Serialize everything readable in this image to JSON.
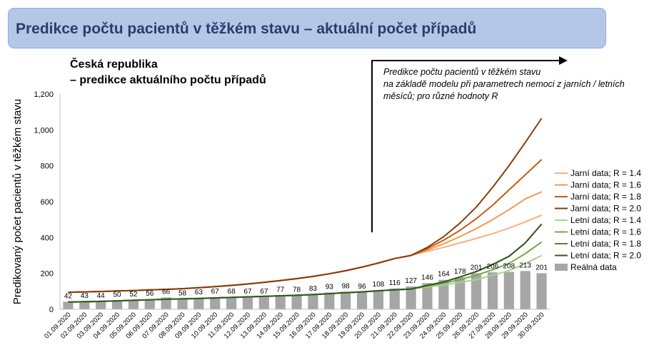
{
  "header": {
    "title": "Predikce počtu pacientů v těžkém stavu – aktuální počet případů"
  },
  "subtitle": {
    "line1": "Česká republika",
    "line2": "– predikce aktuálního počtu případů"
  },
  "annotation": {
    "line1": "Predikce počtu pacientů v těžkém stavu",
    "line2": "na základě modelu při parametrech nemoci z jarních / letních",
    "line3": "měsíců; pro různé hodnoty R"
  },
  "chart_data": {
    "type": "bar",
    "ylabel": "Predikovaný počet pacientů v těžkém stavu",
    "xlabel": "",
    "ylim": [
      0,
      1200
    ],
    "yticks": [
      0,
      200,
      400,
      600,
      800,
      1000,
      1200
    ],
    "ytick_labels": [
      "0",
      "200",
      "400",
      "600",
      "800",
      "1,000",
      "1,200"
    ],
    "grid": false,
    "legend_position": "right",
    "categories": [
      "01.09.2020",
      "02.09.2020",
      "03.09.2020",
      "04.09.2020",
      "05.09.2020",
      "06.09.2020",
      "07.09.2020",
      "08.09.2020",
      "09.09.2020",
      "10.09.2020",
      "11.09.2020",
      "12.09.2020",
      "13.09.2020",
      "14.09.2020",
      "15.09.2020",
      "16.09.2020",
      "17.09.2020",
      "18.09.2020",
      "19.09.2020",
      "20.09.2020",
      "21.09.2020",
      "22.09.2020",
      "23.09.2020",
      "24.09.2020",
      "25.09.2020",
      "26.09.2020",
      "27.09.2020",
      "28.09.2020",
      "29.09.2020",
      "30.09.2020"
    ],
    "bars": {
      "name": "Reálná data",
      "color": "#a6a6a6",
      "values": [
        42,
        43,
        44,
        50,
        52,
        56,
        66,
        58,
        63,
        67,
        68,
        67,
        67,
        77,
        78,
        83,
        93,
        98,
        96,
        108,
        116,
        127,
        146,
        164,
        178,
        201,
        206,
        208,
        213,
        201
      ]
    },
    "series": [
      {
        "name": "Jarní data; R = 1.4",
        "color": "#f4b183",
        "values": [
          95,
          97,
          99,
          102,
          104,
          108,
          111,
          115,
          120,
          126,
          133,
          141,
          150,
          160,
          171,
          183,
          198,
          215,
          235,
          258,
          283,
          300,
          323,
          345,
          370,
          395,
          422,
          452,
          487,
          525
        ]
      },
      {
        "name": "Jarní data; R = 1.6",
        "color": "#ed9b4f",
        "values": [
          95,
          97,
          99,
          102,
          104,
          108,
          111,
          115,
          120,
          126,
          133,
          141,
          150,
          160,
          171,
          183,
          198,
          215,
          235,
          258,
          283,
          300,
          330,
          365,
          405,
          450,
          500,
          555,
          615,
          655
        ]
      },
      {
        "name": "Jarní data; R = 1.8",
        "color": "#c55a11",
        "values": [
          95,
          97,
          99,
          102,
          104,
          108,
          111,
          115,
          120,
          126,
          133,
          141,
          150,
          160,
          171,
          183,
          198,
          215,
          235,
          258,
          283,
          300,
          338,
          385,
          440,
          505,
          580,
          665,
          750,
          835
        ]
      },
      {
        "name": "Jarní data; R = 2.0",
        "color": "#843c0c",
        "values": [
          95,
          97,
          99,
          102,
          104,
          108,
          111,
          115,
          120,
          126,
          133,
          141,
          150,
          160,
          171,
          183,
          198,
          215,
          235,
          258,
          283,
          300,
          345,
          405,
          480,
          570,
          680,
          800,
          930,
          1065
        ]
      },
      {
        "name": "Letní data; R = 1.4",
        "color": "#a9d18e",
        "values": [
          40,
          42,
          44,
          47,
          50,
          53,
          56,
          58,
          60,
          63,
          66,
          69,
          72,
          75,
          78,
          82,
          87,
          92,
          97,
          103,
          108,
          113,
          125,
          135,
          150,
          165,
          190,
          215,
          255,
          300
        ]
      },
      {
        "name": "Letní data; R = 1.6",
        "color": "#70ad47",
        "values": [
          40,
          42,
          44,
          47,
          50,
          53,
          56,
          58,
          60,
          63,
          66,
          69,
          72,
          75,
          78,
          82,
          87,
          92,
          97,
          103,
          108,
          113,
          130,
          145,
          165,
          190,
          220,
          255,
          310,
          375
        ]
      },
      {
        "name": "Letní data; R = 1.8",
        "color": "#548235",
        "values": [
          40,
          42,
          44,
          47,
          50,
          53,
          56,
          58,
          60,
          63,
          66,
          69,
          72,
          75,
          78,
          82,
          87,
          92,
          97,
          103,
          108,
          113,
          133,
          152,
          180,
          210,
          250,
          295,
          370,
          475
        ]
      },
      {
        "name": "Letní data; R = 2.0",
        "color": "#375623",
        "values": [
          40,
          42,
          44,
          47,
          50,
          53,
          56,
          58,
          60,
          63,
          66,
          69,
          72,
          75,
          78,
          82,
          87,
          92,
          97,
          103,
          108,
          113,
          133,
          152,
          180,
          210,
          250,
          295,
          370,
          475
        ]
      }
    ],
    "legend_order": [
      "Jarní data; R = 1.4",
      "Jarní data; R = 1.6",
      "Jarní data; R = 1.8",
      "Jarní data; R = 2.0",
      "Letní data; R = 1.4",
      "Letní data; R = 1.6",
      "Letní data; R = 1.8",
      "Letní data; R = 2.0",
      "Reálná data"
    ]
  }
}
